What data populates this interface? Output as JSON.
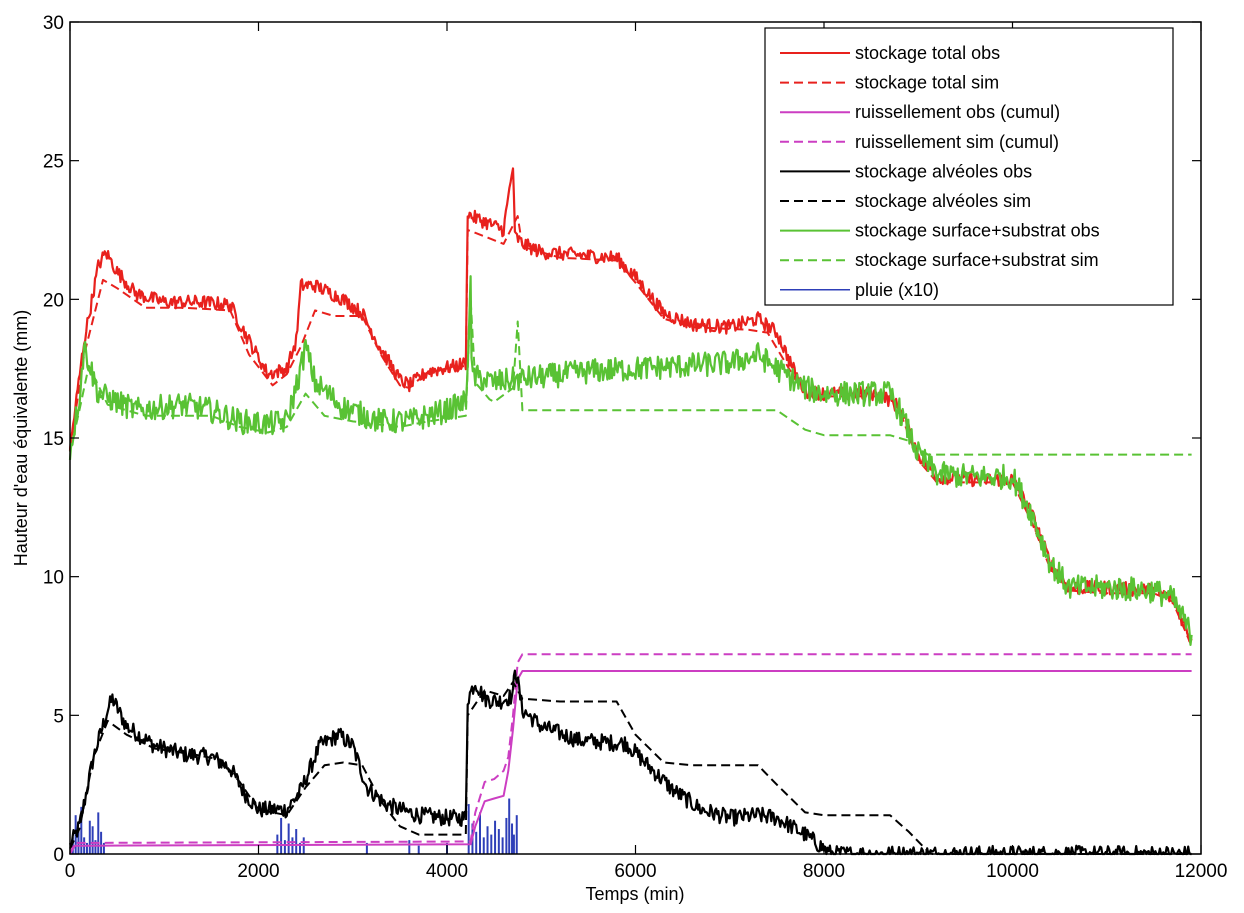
{
  "chart_data": {
    "type": "line",
    "xlabel": "Temps (min)",
    "ylabel": "Hauteur d'eau équivalente (mm)",
    "xlim": [
      0,
      12000
    ],
    "ylim": [
      0,
      30
    ],
    "xticks": [
      0,
      2000,
      4000,
      6000,
      8000,
      10000,
      12000
    ],
    "yticks": [
      0,
      5,
      10,
      15,
      20,
      25,
      30
    ],
    "grid": false,
    "legend_position": "top-right",
    "series": [
      {
        "name": "stockage total obs",
        "color": "#e8211d",
        "dash": "solid",
        "noise": 0.25,
        "x": [
          0,
          150,
          300,
          380,
          500,
          700,
          1000,
          1400,
          1700,
          1900,
          2100,
          2300,
          2400,
          2450,
          2600,
          2900,
          3100,
          3300,
          3500,
          3600,
          3800,
          4100,
          4200,
          4220,
          4250,
          4400,
          4600,
          4700,
          4720,
          4800,
          5000,
          5400,
          5800,
          6000,
          6300,
          6600,
          7000,
          7300,
          7500,
          7700,
          7800,
          8000,
          8600,
          8800,
          9000,
          9200,
          9600,
          10000,
          10200,
          10400,
          10600,
          11000,
          11500,
          11700,
          11900
        ],
        "y": [
          14.6,
          18.5,
          21.2,
          21.7,
          21.0,
          20.2,
          19.9,
          19.9,
          19.8,
          18.5,
          17.3,
          17.5,
          18.5,
          20.5,
          20.5,
          20.0,
          19.5,
          18.2,
          17.1,
          16.9,
          17.4,
          17.6,
          17.7,
          23.2,
          23.0,
          22.8,
          22.5,
          24.8,
          22.3,
          22.0,
          21.7,
          21.6,
          21.5,
          20.8,
          19.5,
          19.1,
          19.0,
          19.3,
          18.8,
          17.3,
          16.7,
          16.6,
          16.6,
          16.1,
          14.4,
          13.6,
          13.5,
          13.5,
          12.3,
          10.5,
          9.6,
          9.6,
          9.5,
          9.2,
          7.7
        ]
      },
      {
        "name": "stockage total sim",
        "color": "#e8211d",
        "dash": "dashed",
        "x": [
          0,
          150,
          350,
          500,
          800,
          1200,
          1700,
          1900,
          2150,
          2300,
          2450,
          2600,
          2800,
          3100,
          3300,
          3500,
          3600,
          3800,
          4200,
          4220,
          4300,
          4600,
          4750,
          4800,
          5200,
          5800,
          6000,
          6300,
          6600,
          7200,
          7400,
          7700,
          7800,
          8000,
          8700,
          8800,
          9000,
          9200,
          9600,
          10000,
          10200,
          10400,
          10600,
          11000,
          11500,
          11700,
          11900
        ],
        "y": [
          14.6,
          18.0,
          20.7,
          20.4,
          19.7,
          19.7,
          19.6,
          18.0,
          16.9,
          17.3,
          18.3,
          19.6,
          19.4,
          19.4,
          18.0,
          16.9,
          16.8,
          17.4,
          17.6,
          22.5,
          22.4,
          22.0,
          23.0,
          21.9,
          21.5,
          21.4,
          20.6,
          19.3,
          19.0,
          18.9,
          18.8,
          17.1,
          16.6,
          16.5,
          16.5,
          16.0,
          14.2,
          13.4,
          13.4,
          13.4,
          12.0,
          10.3,
          9.5,
          9.4,
          9.4,
          9.1,
          7.5
        ]
      },
      {
        "name": "ruissellement obs (cumul)",
        "color": "#cc3ec2",
        "dash": "solid",
        "x": [
          0,
          50,
          200,
          4250,
          4300,
          4400,
          4500,
          4600,
          4650,
          4700,
          4750,
          4800,
          11900
        ],
        "y": [
          0.0,
          0.3,
          0.3,
          0.35,
          1.0,
          1.9,
          2.0,
          2.1,
          3.0,
          4.5,
          6.3,
          6.6,
          6.6
        ]
      },
      {
        "name": "ruissellement sim (cumul)",
        "color": "#cc3ec2",
        "dash": "dashed",
        "x": [
          0,
          50,
          200,
          4250,
          4300,
          4400,
          4500,
          4600,
          4650,
          4700,
          4750,
          4800,
          11900
        ],
        "y": [
          0.0,
          0.4,
          0.4,
          0.45,
          1.5,
          2.6,
          2.7,
          3.0,
          3.5,
          5.0,
          6.9,
          7.2,
          7.2
        ]
      },
      {
        "name": "stockage alvéoles obs",
        "color": "#000000",
        "dash": "solid",
        "noise": 0.3,
        "x": [
          0,
          100,
          250,
          400,
          450,
          600,
          900,
          1200,
          1500,
          1700,
          1850,
          2000,
          2300,
          2450,
          2650,
          2850,
          3000,
          3150,
          3350,
          3500,
          3700,
          4000,
          4200,
          4220,
          4300,
          4400,
          4550,
          4700,
          4720,
          4800,
          5000,
          5400,
          5800,
          5900,
          6100,
          6400,
          6700,
          7000,
          7300,
          7500,
          7800,
          8000,
          8050,
          8100,
          11900
        ],
        "y": [
          0.3,
          1.0,
          3.5,
          5.2,
          5.6,
          4.6,
          3.9,
          3.6,
          3.5,
          3.1,
          2.2,
          1.6,
          1.6,
          2.3,
          3.9,
          4.3,
          3.9,
          2.4,
          1.8,
          1.6,
          1.4,
          1.3,
          1.3,
          5.6,
          6.2,
          5.6,
          5.5,
          5.7,
          6.8,
          5.2,
          4.6,
          4.1,
          4.0,
          4.0,
          3.3,
          2.3,
          1.6,
          1.3,
          1.4,
          1.3,
          0.7,
          0.2,
          0.05,
          0.0,
          0.0
        ]
      },
      {
        "name": "stockage alvéoles sim",
        "color": "#000000",
        "dash": "dashed",
        "x": [
          0,
          100,
          250,
          400,
          600,
          900,
          1300,
          1600,
          1800,
          2000,
          2300,
          2500,
          2700,
          2900,
          3100,
          3300,
          3500,
          3700,
          4200,
          4220,
          4400,
          4600,
          4700,
          4800,
          5200,
          5800,
          6000,
          6300,
          6600,
          7300,
          7500,
          7800,
          8000,
          8700,
          8900,
          9100,
          9150,
          11900
        ],
        "y": [
          0.2,
          0.9,
          3.5,
          4.8,
          4.3,
          3.8,
          3.6,
          3.4,
          2.6,
          1.6,
          1.4,
          2.4,
          3.2,
          3.3,
          3.2,
          1.9,
          1.0,
          0.7,
          0.7,
          5.0,
          5.9,
          5.7,
          6.2,
          5.6,
          5.5,
          5.5,
          4.3,
          3.3,
          3.2,
          3.2,
          2.5,
          1.5,
          1.4,
          1.4,
          0.8,
          0.1,
          0.0,
          0.0
        ]
      },
      {
        "name": "stockage surface+substrat obs",
        "color": "#59c234",
        "dash": "solid",
        "noise": 0.45,
        "x": [
          0,
          100,
          150,
          300,
          700,
          1200,
          1500,
          1800,
          2100,
          2300,
          2450,
          2500,
          2600,
          2900,
          3300,
          3600,
          4000,
          4200,
          4250,
          4260,
          4300,
          4500,
          4700,
          5000,
          5500,
          6000,
          6500,
          7000,
          7300,
          7500,
          7800,
          8000,
          8700,
          8800,
          9000,
          9200,
          9600,
          10000,
          10200,
          10400,
          10600,
          11000,
          11500,
          11700,
          11900
        ],
        "y": [
          14.5,
          16.5,
          18.3,
          16.6,
          16.0,
          16.2,
          16.0,
          15.6,
          15.5,
          15.6,
          17.5,
          18.3,
          17.0,
          16.1,
          15.6,
          15.6,
          16.0,
          16.3,
          20.5,
          17.5,
          17.2,
          17.0,
          17.1,
          17.2,
          17.4,
          17.5,
          17.6,
          17.7,
          18.0,
          17.5,
          16.8,
          16.6,
          16.6,
          16.0,
          14.4,
          13.7,
          13.6,
          13.6,
          12.3,
          10.5,
          9.6,
          9.6,
          9.5,
          9.2,
          7.9
        ]
      },
      {
        "name": "stockage surface+substrat sim",
        "color": "#59c234",
        "dash": "dashed",
        "x": [
          0,
          100,
          200,
          400,
          800,
          1500,
          1800,
          2100,
          2300,
          2500,
          2700,
          3000,
          3500,
          3800,
          4200,
          4250,
          4300,
          4450,
          4500,
          4700,
          4750,
          4800,
          5000,
          6000,
          7000,
          7500,
          7800,
          8000,
          8700,
          8900,
          9100,
          9200,
          9300,
          11900
        ],
        "y": [
          14.5,
          16.0,
          17.6,
          16.2,
          15.8,
          15.8,
          15.4,
          15.2,
          15.4,
          16.6,
          15.8,
          15.6,
          15.4,
          15.6,
          15.8,
          20.0,
          17.0,
          16.4,
          16.3,
          16.8,
          19.2,
          16.0,
          16.0,
          16.0,
          16.0,
          16.0,
          15.3,
          15.1,
          15.1,
          14.9,
          14.4,
          14.4,
          14.4,
          14.4
        ]
      },
      {
        "name": "pluie (x10)",
        "color": "#2e3fb8",
        "dash": "solid",
        "bars": [
          [
            30,
            0.6
          ],
          [
            60,
            1.4
          ],
          [
            90,
            0.9
          ],
          [
            120,
            1.7
          ],
          [
            150,
            0.6
          ],
          [
            180,
            0.4
          ],
          [
            210,
            1.2
          ],
          [
            240,
            1.0
          ],
          [
            270,
            0.5
          ],
          [
            300,
            1.5
          ],
          [
            330,
            0.8
          ],
          [
            360,
            0.4
          ],
          [
            2200,
            0.7
          ],
          [
            2240,
            1.3
          ],
          [
            2280,
            0.5
          ],
          [
            2320,
            1.1
          ],
          [
            2360,
            0.6
          ],
          [
            2400,
            0.9
          ],
          [
            2440,
            0.4
          ],
          [
            2480,
            0.6
          ],
          [
            3150,
            0.4
          ],
          [
            3600,
            0.5
          ],
          [
            3700,
            0.3
          ],
          [
            4000,
            0.4
          ],
          [
            4230,
            1.8
          ],
          [
            4270,
            1.1
          ],
          [
            4310,
            0.8
          ],
          [
            4350,
            1.5
          ],
          [
            4390,
            0.6
          ],
          [
            4430,
            1.0
          ],
          [
            4470,
            0.7
          ],
          [
            4510,
            1.2
          ],
          [
            4550,
            0.9
          ],
          [
            4590,
            0.6
          ],
          [
            4630,
            1.3
          ],
          [
            4660,
            2.0
          ],
          [
            4690,
            1.1
          ],
          [
            4710,
            0.7
          ],
          [
            4740,
            1.4
          ]
        ]
      }
    ]
  }
}
